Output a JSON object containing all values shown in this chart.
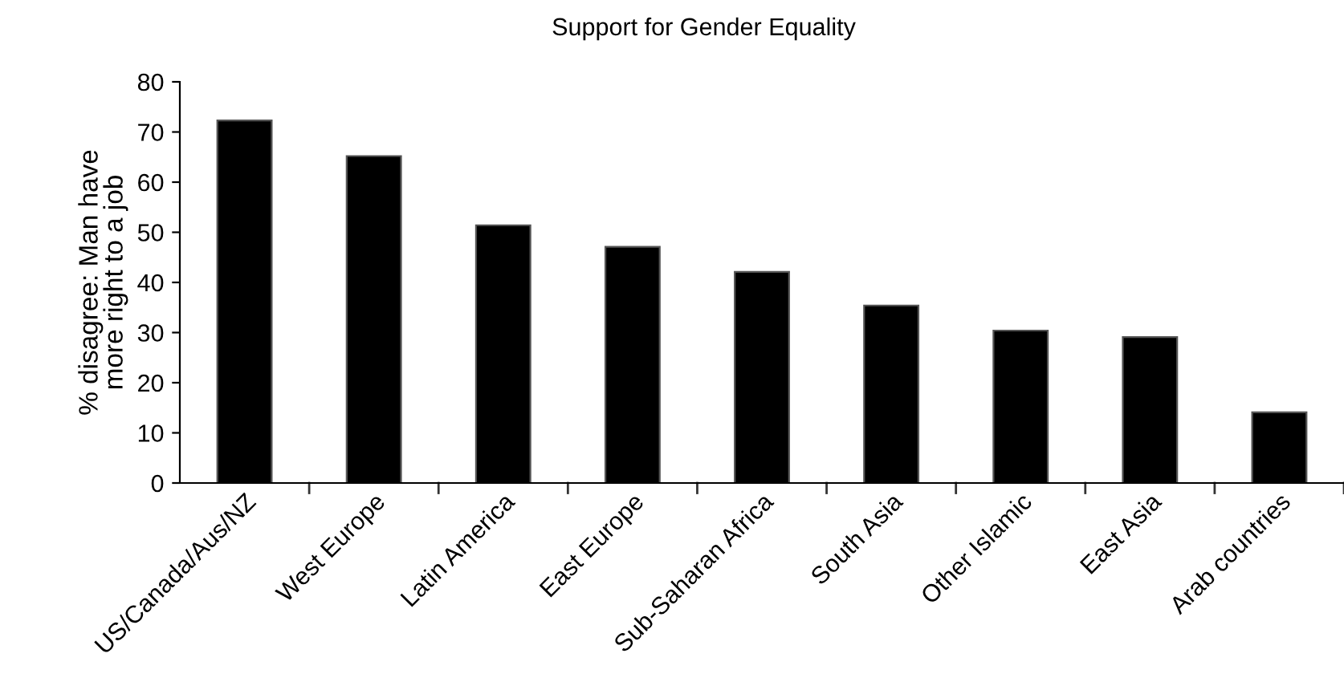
{
  "chart_data": {
    "type": "bar",
    "title": "Support for Gender Equality",
    "ylabel": "% disagree: Man have\nmore right to a job",
    "categories": [
      "US/Canada/Aus/NZ",
      "West Europe",
      "Latin America",
      "East Europe",
      "Sub-Saharan Africa",
      "South Asia",
      "Other Islamic",
      "East Asia",
      "Arab countries"
    ],
    "values": [
      72.3,
      65.2,
      51.4,
      47.1,
      42.1,
      35.4,
      30.4,
      29.1,
      14.1
    ],
    "color": "#000000",
    "ylim": [
      0,
      80
    ],
    "yticks": [
      0,
      10,
      20,
      30,
      40,
      50,
      60,
      70,
      80
    ],
    "grid": false
  }
}
